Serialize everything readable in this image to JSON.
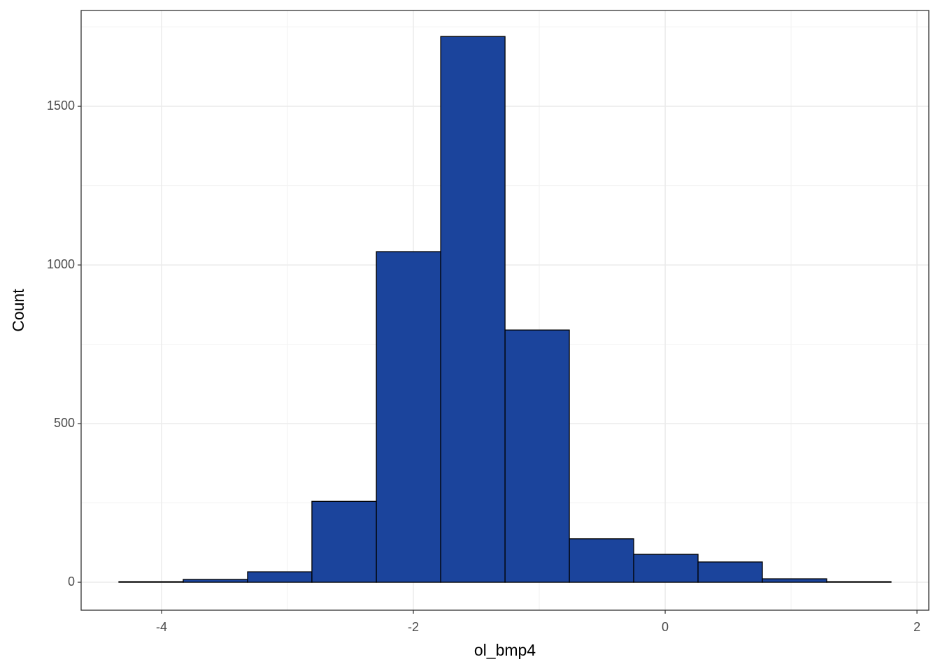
{
  "chart_data": {
    "type": "histogram",
    "x_label": "ol_bmp4",
    "y_label": "Count",
    "bins": [
      -4.339,
      -3.828,
      -3.317,
      -2.806,
      -2.294,
      -1.783,
      -1.272,
      -0.761,
      -0.25,
      0.261,
      0.772,
      1.283,
      1.794
    ],
    "values": [
      2,
      9,
      33,
      255,
      1042,
      1720,
      795,
      137,
      88,
      64,
      11,
      2
    ],
    "color": "#1b449c",
    "edge_color": "#000000",
    "xlim": [
      -4.639,
      2.094
    ],
    "ylim": [
      -88,
      1802
    ],
    "xticks": [
      -4,
      -2,
      0,
      2
    ],
    "yticks": [
      0,
      500,
      1000,
      1500
    ],
    "grid": true
  }
}
